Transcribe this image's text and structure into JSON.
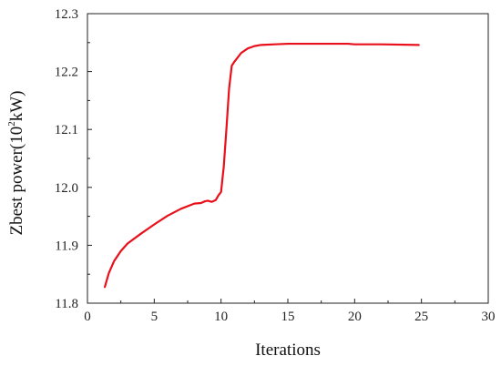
{
  "chart_data": {
    "type": "line",
    "xlabel": "Iterations",
    "ylabel": {
      "prefix": "Zbest power(10",
      "sup": "2",
      "suffix": "kW)"
    },
    "xlim": [
      0,
      30
    ],
    "ylim": [
      11.8,
      12.3
    ],
    "xticks": [
      "0",
      "5",
      "10",
      "15",
      "20",
      "25",
      "30"
    ],
    "yticks": [
      "11.8",
      "11.9",
      "12.0",
      "12.1",
      "12.2",
      "12.3"
    ],
    "grid": false,
    "legend": "none",
    "series": [
      {
        "color": "#e8101a",
        "x": [
          1.3,
          1.6,
          2.0,
          2.5,
          3.0,
          4.0,
          5.0,
          6.0,
          7.0,
          8.0,
          8.5,
          8.8,
          9.0,
          9.3,
          9.6,
          9.8,
          10.0,
          10.2,
          10.4,
          10.6,
          10.8,
          11.0,
          11.5,
          12.0,
          12.5,
          13.0,
          14.0,
          15.0,
          17.0,
          19.5,
          20.0,
          22.0,
          24.8
        ],
        "y": [
          11.828,
          11.852,
          11.873,
          11.89,
          11.903,
          11.92,
          11.936,
          11.951,
          11.963,
          11.972,
          11.973,
          11.976,
          11.977,
          11.975,
          11.978,
          11.986,
          11.992,
          12.035,
          12.1,
          12.17,
          12.21,
          12.217,
          12.232,
          12.24,
          12.244,
          12.246,
          12.247,
          12.248,
          12.248,
          12.248,
          12.247,
          12.247,
          12.246
        ]
      }
    ]
  }
}
